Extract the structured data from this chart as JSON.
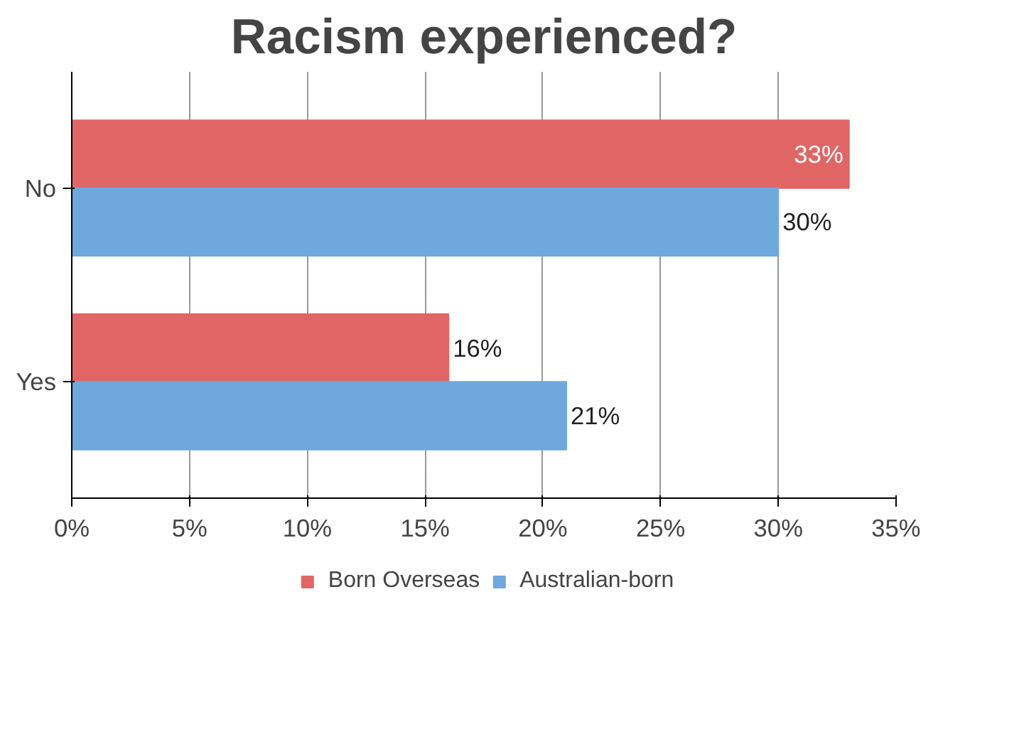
{
  "chart_data": {
    "type": "bar",
    "orientation": "horizontal",
    "title": "Racism experienced?",
    "categories": [
      "No",
      "Yes"
    ],
    "series": [
      {
        "name": "Born Overseas",
        "color": "#e06666",
        "values": [
          33,
          16
        ],
        "value_labels": [
          "33%",
          "16%"
        ]
      },
      {
        "name": "Australian-born",
        "color": "#6fa8dc",
        "values": [
          30,
          21
        ],
        "value_labels": [
          "30%",
          "21%"
        ]
      }
    ],
    "xlim": [
      0,
      35
    ],
    "xticks": [
      {
        "value": 0,
        "label": "0%"
      },
      {
        "value": 5,
        "label": "5%"
      },
      {
        "value": 10,
        "label": "10%"
      },
      {
        "value": 15,
        "label": "15%"
      },
      {
        "value": 20,
        "label": "20%"
      },
      {
        "value": 25,
        "label": "25%"
      },
      {
        "value": 30,
        "label": "30%"
      },
      {
        "value": 35,
        "label": "35%"
      }
    ],
    "grid": "x",
    "legend": "bottom"
  }
}
